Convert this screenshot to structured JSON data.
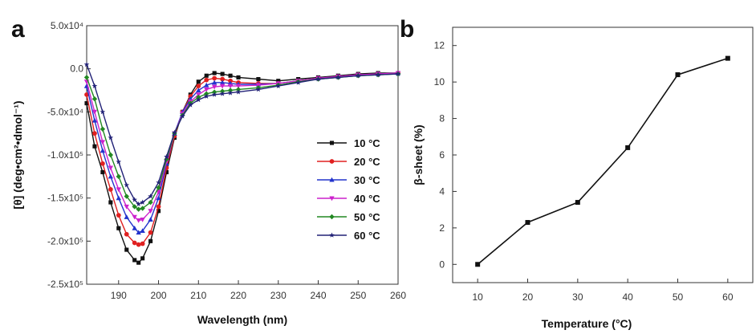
{
  "panels": {
    "a": "a",
    "b": "b"
  },
  "chart_data": [
    {
      "type": "line",
      "xlabel": "Wavelength (nm)",
      "ylabel": "[θ] (deg•cm²•dmol⁻¹)",
      "xlim": [
        182,
        260
      ],
      "ylim": [
        -250000,
        50000
      ],
      "xticks": [
        190,
        200,
        210,
        220,
        230,
        240,
        250,
        260
      ],
      "yticks": [
        {
          "v": 50000,
          "label": "5.0x10⁴"
        },
        {
          "v": 0,
          "label": "0.0"
        },
        {
          "v": -50000,
          "label": "-5.0x10⁴"
        },
        {
          "v": -100000,
          "label": "-1.0x10⁵"
        },
        {
          "v": -150000,
          "label": "-1.5x10⁵"
        },
        {
          "v": -200000,
          "label": "-2.0x10⁵"
        },
        {
          "v": -250000,
          "label": "-2.5x10⁵"
        }
      ],
      "legend_position": "center-right",
      "x": [
        182,
        184,
        186,
        188,
        190,
        192,
        194,
        195,
        196,
        198,
        200,
        202,
        204,
        206,
        208,
        210,
        212,
        214,
        216,
        218,
        220,
        225,
        230,
        235,
        240,
        245,
        250,
        255,
        260
      ],
      "series": [
        {
          "name": "10 °C",
          "color": "#111111",
          "marker": "square",
          "values": [
            -40000,
            -90000,
            -120000,
            -155000,
            -185000,
            -210000,
            -222000,
            -225000,
            -220000,
            -200000,
            -165000,
            -120000,
            -80000,
            -50000,
            -30000,
            -15000,
            -8000,
            -5000,
            -6000,
            -8000,
            -10000,
            -12000,
            -14000,
            -12000,
            -10000,
            -8000,
            -6000,
            -5000,
            -5000
          ]
        },
        {
          "name": "20 °C",
          "color": "#e02020",
          "marker": "circle",
          "values": [
            -30000,
            -75000,
            -110000,
            -140000,
            -170000,
            -192000,
            -202000,
            -204000,
            -203000,
            -190000,
            -160000,
            -115000,
            -78000,
            -50000,
            -32000,
            -20000,
            -13000,
            -11000,
            -12000,
            -14000,
            -16000,
            -17000,
            -17000,
            -14000,
            -11000,
            -9000,
            -7000,
            -6000,
            -5000
          ]
        },
        {
          "name": "30 °C",
          "color": "#2233cc",
          "marker": "triangle-up",
          "values": [
            -20000,
            -60000,
            -95000,
            -125000,
            -150000,
            -172000,
            -185000,
            -190000,
            -188000,
            -175000,
            -150000,
            -110000,
            -75000,
            -50000,
            -35000,
            -25000,
            -19000,
            -16000,
            -16000,
            -17000,
            -18000,
            -18000,
            -17000,
            -14000,
            -11000,
            -9000,
            -7000,
            -6000,
            -5000
          ]
        },
        {
          "name": "40 °C",
          "color": "#cc22cc",
          "marker": "triangle-down",
          "values": [
            -15000,
            -50000,
            -85000,
            -115000,
            -140000,
            -160000,
            -172000,
            -176000,
            -175000,
            -165000,
            -143000,
            -108000,
            -75000,
            -52000,
            -38000,
            -30000,
            -24000,
            -21000,
            -20000,
            -20000,
            -20000,
            -19000,
            -17000,
            -14000,
            -11000,
            -9000,
            -7000,
            -6000,
            -5000
          ]
        },
        {
          "name": "50 °C",
          "color": "#228822",
          "marker": "diamond",
          "values": [
            -10000,
            -35000,
            -70000,
            -100000,
            -125000,
            -148000,
            -160000,
            -163000,
            -162000,
            -155000,
            -138000,
            -105000,
            -75000,
            -54000,
            -40000,
            -33000,
            -29000,
            -27000,
            -26000,
            -25000,
            -24000,
            -22000,
            -19000,
            -15000,
            -12000,
            -10000,
            -8000,
            -7000,
            -6000
          ]
        },
        {
          "name": "60 °C",
          "color": "#222277",
          "marker": "star",
          "values": [
            5000,
            -20000,
            -50000,
            -80000,
            -108000,
            -135000,
            -152000,
            -157000,
            -155000,
            -148000,
            -132000,
            -102000,
            -74000,
            -55000,
            -42000,
            -36000,
            -32000,
            -30000,
            -29000,
            -28000,
            -27000,
            -24000,
            -20000,
            -16000,
            -12000,
            -10000,
            -8000,
            -7000,
            -6000
          ]
        }
      ]
    },
    {
      "type": "line",
      "xlabel": "Temperature (°C)",
      "ylabel": "β-sheet (%)",
      "xlim": [
        5,
        65
      ],
      "ylim": [
        -1,
        13
      ],
      "xticks": [
        10,
        20,
        30,
        40,
        50,
        60
      ],
      "yticks": [
        0,
        2,
        4,
        6,
        8,
        10,
        12
      ],
      "x": [
        10,
        20,
        30,
        40,
        50,
        60
      ],
      "values": [
        0.0,
        2.3,
        3.4,
        6.4,
        10.4,
        11.3
      ]
    }
  ]
}
